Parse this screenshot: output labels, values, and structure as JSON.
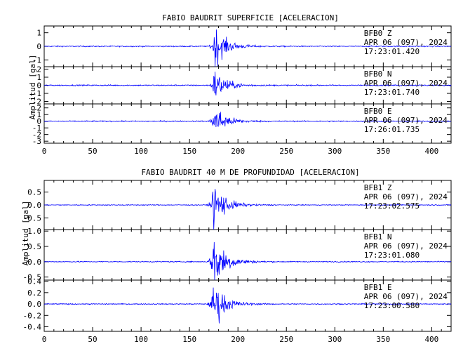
{
  "chart_data": [
    {
      "type": "line",
      "title": "FABIO BAUDRIT SUPERFICIE [ACELERACION]",
      "ylabel": "Amplitud [gal]",
      "xlim": [
        0,
        420
      ],
      "x_ticks": [
        0,
        50,
        100,
        150,
        200,
        250,
        300,
        350,
        400
      ],
      "event_onset_x": 173,
      "panels": [
        {
          "station": "BFB0",
          "component": "Z",
          "date": "APR 06 (097), 2024",
          "time": "17:23:01.420",
          "ylim": [
            -1.5,
            1.5
          ],
          "y_ticks": [
            "1",
            "0",
            "-1"
          ],
          "y_tick_values": [
            1,
            0,
            -1
          ],
          "peak": 1.45,
          "noise": 0.04
        },
        {
          "station": "BFB0",
          "component": "N",
          "date": "APR 06 (097), 2024",
          "time": "17:23:01.740",
          "ylim": [
            -2.3,
            2.3
          ],
          "y_ticks": [
            "2",
            "1",
            "0",
            "-1",
            "-2"
          ],
          "y_tick_values": [
            2,
            1,
            0,
            -1,
            -2
          ],
          "peak": 1.9,
          "noise": 0.07
        },
        {
          "station": "BFB0",
          "component": "E",
          "date": "APR 06 (097), 2024",
          "time": "17:26:01.735",
          "ylim": [
            -3.3,
            2.6
          ],
          "y_ticks": [
            "2",
            "1",
            "0",
            "-1",
            "-2",
            "-3"
          ],
          "y_tick_values": [
            2,
            1,
            0,
            -1,
            -2,
            -3
          ],
          "peak": 2.4,
          "noise": 0.08
        }
      ]
    },
    {
      "type": "line",
      "title": "FABIO BAUDRIT 40 M DE PROFUNDIDAD [ACELERACION]",
      "ylabel": "Amplitud [gal]",
      "xlim": [
        0,
        420
      ],
      "x_ticks": [
        0,
        50,
        100,
        150,
        200,
        250,
        300,
        350,
        400
      ],
      "event_onset_x": 172,
      "panels": [
        {
          "station": "BFB1",
          "component": "Z",
          "date": "APR 06 (097), 2024",
          "time": "17:23:02.575",
          "ylim": [
            -0.95,
            0.95
          ],
          "y_ticks": [
            "0.5",
            "0.0",
            "-0.5"
          ],
          "y_tick_values": [
            0.5,
            0,
            -0.5
          ],
          "peak": 0.9,
          "noise": 0.015
        },
        {
          "station": "BFB1",
          "component": "N",
          "date": "APR 06 (097), 2024",
          "time": "17:23:01.080",
          "ylim": [
            -0.6,
            1.05
          ],
          "y_ticks": [
            "1.0",
            "0.5",
            "0.0",
            "-0.5"
          ],
          "y_tick_values": [
            1,
            0.5,
            0,
            -0.5
          ],
          "peak": 1.0,
          "noise": 0.015
        },
        {
          "station": "BFB1",
          "component": "E",
          "date": "APR 06 (097), 2024",
          "time": "17:23:00.580",
          "ylim": [
            -0.48,
            0.42
          ],
          "y_ticks": [
            "0.4",
            "0.2",
            "0.0",
            "-0.2",
            "-0.4"
          ],
          "y_tick_values": [
            0.4,
            0.2,
            0,
            -0.2,
            -0.4
          ],
          "peak": 0.4,
          "noise": 0.008
        }
      ]
    }
  ],
  "colors": {
    "trace": "#0000ff",
    "axes": "#000000",
    "background": "#ffffff"
  }
}
